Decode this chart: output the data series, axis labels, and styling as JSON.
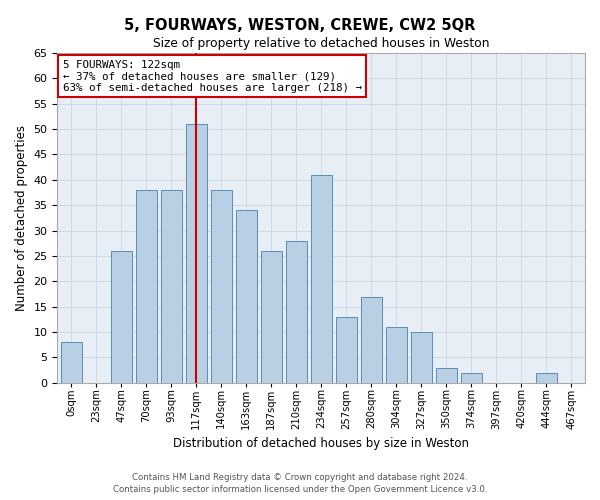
{
  "title": "5, FOURWAYS, WESTON, CREWE, CW2 5QR",
  "subtitle": "Size of property relative to detached houses in Weston",
  "xlabel": "Distribution of detached houses by size in Weston",
  "ylabel": "Number of detached properties",
  "bar_labels": [
    "0sqm",
    "23sqm",
    "47sqm",
    "70sqm",
    "93sqm",
    "117sqm",
    "140sqm",
    "163sqm",
    "187sqm",
    "210sqm",
    "234sqm",
    "257sqm",
    "280sqm",
    "304sqm",
    "327sqm",
    "350sqm",
    "374sqm",
    "397sqm",
    "420sqm",
    "444sqm",
    "467sqm"
  ],
  "bar_values": [
    8,
    0,
    26,
    38,
    38,
    51,
    38,
    34,
    26,
    28,
    41,
    13,
    17,
    11,
    10,
    3,
    2,
    0,
    0,
    2,
    0
  ],
  "bar_color": "#b8cfe4",
  "bar_edge_color": "#5b8db8",
  "grid_color": "#ccd6e0",
  "background_color": "#e8eef5",
  "vline_x_index": 5,
  "vline_color": "#cc0000",
  "annotation_text": "5 FOURWAYS: 122sqm\n← 37% of detached houses are smaller (129)\n63% of semi-detached houses are larger (218) →",
  "annotation_box_facecolor": "#ffffff",
  "annotation_box_edgecolor": "#cc0000",
  "ylim": [
    0,
    65
  ],
  "yticks": [
    0,
    5,
    10,
    15,
    20,
    25,
    30,
    35,
    40,
    45,
    50,
    55,
    60,
    65
  ],
  "footer_line1": "Contains HM Land Registry data © Crown copyright and database right 2024.",
  "footer_line2": "Contains public sector information licensed under the Open Government Licence v3.0."
}
